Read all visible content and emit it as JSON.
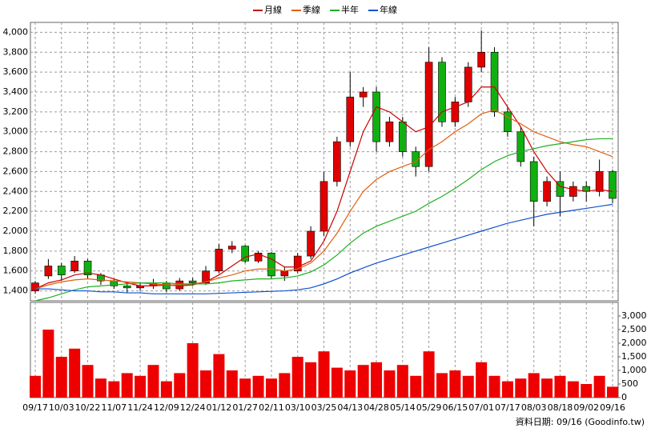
{
  "chart_data": {
    "type": "candlestick",
    "legend": [
      {
        "name": "月線",
        "color": "#cc0000"
      },
      {
        "name": "季線",
        "color": "#e06010"
      },
      {
        "name": "半年",
        "color": "#20b020"
      },
      {
        "name": "年線",
        "color": "#1050d0"
      }
    ],
    "categories": [
      "09/17",
      null,
      "10/03",
      null,
      "10/22",
      null,
      "11/07",
      null,
      "11/24",
      null,
      "12/09",
      null,
      "12/24",
      null,
      "01/12",
      null,
      "01/27",
      null,
      "02/11",
      null,
      "03/10",
      null,
      "03/25",
      null,
      "04/13",
      null,
      "04/28",
      null,
      "05/14",
      null,
      "05/29",
      null,
      "06/15",
      null,
      "07/01",
      null,
      "07/17",
      null,
      "08/03",
      null,
      "08/18",
      null,
      "09/02",
      null,
      "09/16"
    ],
    "open": [
      1400,
      1550,
      1650,
      1600,
      1700,
      1560,
      1500,
      1450,
      1430,
      1450,
      1480,
      1420,
      1500,
      1480,
      1600,
      1820,
      1850,
      1700,
      1780,
      1550,
      1600,
      1750,
      2000,
      2500,
      2900,
      3350,
      3400,
      2900,
      3100,
      2800,
      2650,
      3700,
      3100,
      3300,
      3650,
      3800,
      3200,
      3000,
      2700,
      2300,
      2500,
      2350,
      2450,
      2400,
      2600
    ],
    "high": [
      1500,
      1720,
      1680,
      1750,
      1720,
      1580,
      1520,
      1480,
      1480,
      1520,
      1500,
      1530,
      1530,
      1650,
      1870,
      1900,
      1860,
      1800,
      1790,
      1640,
      1780,
      2050,
      2600,
      2950,
      3600,
      3450,
      3450,
      3150,
      3150,
      2850,
      3850,
      3750,
      3350,
      3700,
      4020,
      3850,
      3250,
      3050,
      2750,
      2550,
      2600,
      2500,
      2500,
      2720,
      2620
    ],
    "low": [
      1370,
      1520,
      1500,
      1580,
      1520,
      1460,
      1420,
      1380,
      1400,
      1420,
      1390,
      1400,
      1450,
      1460,
      1580,
      1780,
      1680,
      1680,
      1520,
      1500,
      1580,
      1720,
      1950,
      2450,
      2850,
      3250,
      2800,
      2850,
      2750,
      2550,
      2600,
      3050,
      3050,
      3250,
      3600,
      3150,
      2950,
      2650,
      2050,
      2250,
      2150,
      2300,
      2300,
      2350,
      2280
    ],
    "close": [
      1480,
      1650,
      1560,
      1700,
      1560,
      1500,
      1450,
      1430,
      1450,
      1480,
      1420,
      1500,
      1480,
      1600,
      1820,
      1850,
      1700,
      1780,
      1550,
      1600,
      1750,
      2000,
      2500,
      2900,
      3350,
      3400,
      2900,
      3100,
      2800,
      2650,
      3700,
      3100,
      3300,
      3650,
      3800,
      3200,
      3000,
      2700,
      2300,
      2500,
      2350,
      2450,
      2400,
      2600,
      2330
    ],
    "up_color": "#e00000",
    "down_color": "#10b010",
    "series": [
      {
        "name": "月線",
        "color": "#cc0000",
        "values": [
          1420,
          1480,
          1510,
          1560,
          1580,
          1560,
          1520,
          1480,
          1450,
          1450,
          1460,
          1450,
          1460,
          1490,
          1560,
          1650,
          1740,
          1770,
          1720,
          1640,
          1640,
          1700,
          1900,
          2200,
          2600,
          3000,
          3250,
          3200,
          3100,
          3000,
          3050,
          3200,
          3250,
          3300,
          3450,
          3450,
          3250,
          3050,
          2800,
          2600,
          2450,
          2420,
          2400,
          2420,
          2400
        ]
      },
      {
        "name": "季線",
        "color": "#e06010",
        "values": [
          1420,
          1460,
          1490,
          1510,
          1520,
          1510,
          1500,
          1490,
          1480,
          1470,
          1460,
          1460,
          1470,
          1490,
          1530,
          1560,
          1600,
          1620,
          1620,
          1600,
          1620,
          1680,
          1800,
          1980,
          2200,
          2400,
          2520,
          2600,
          2650,
          2700,
          2820,
          2900,
          3000,
          3080,
          3180,
          3220,
          3150,
          3080,
          3000,
          2950,
          2900,
          2870,
          2850,
          2800,
          2750
        ]
      },
      {
        "name": "半年",
        "color": "#20b020",
        "values": [
          1300,
          1330,
          1370,
          1410,
          1440,
          1450,
          1460,
          1470,
          1480,
          1480,
          1480,
          1470,
          1470,
          1470,
          1480,
          1500,
          1510,
          1520,
          1520,
          1530,
          1550,
          1590,
          1660,
          1760,
          1880,
          1980,
          2050,
          2100,
          2150,
          2200,
          2280,
          2350,
          2430,
          2520,
          2620,
          2700,
          2760,
          2800,
          2830,
          2860,
          2880,
          2900,
          2920,
          2930,
          2930
        ]
      },
      {
        "name": "年線",
        "color": "#1050d0",
        "values": [
          1420,
          1420,
          1410,
          1400,
          1400,
          1390,
          1390,
          1380,
          1380,
          1370,
          1370,
          1370,
          1370,
          1370,
          1375,
          1380,
          1385,
          1390,
          1395,
          1400,
          1410,
          1430,
          1470,
          1520,
          1580,
          1630,
          1680,
          1720,
          1760,
          1800,
          1840,
          1880,
          1920,
          1960,
          2000,
          2040,
          2080,
          2110,
          2140,
          2170,
          2190,
          2210,
          2230,
          2250,
          2270
        ]
      }
    ],
    "ylim": [
      1300,
      4100
    ],
    "yticks": [
      {
        "value": 1400,
        "label": "1,400"
      },
      {
        "value": 1600,
        "label": "1,600"
      },
      {
        "value": 1800,
        "label": "1,800"
      },
      {
        "value": 2000,
        "label": "2,000"
      },
      {
        "value": 2200,
        "label": "2,200"
      },
      {
        "value": 2400,
        "label": "2,400"
      },
      {
        "value": 2600,
        "label": "2,600"
      },
      {
        "value": 2800,
        "label": "2,800"
      },
      {
        "value": 3000,
        "label": "3,000"
      },
      {
        "value": 3200,
        "label": "3,200"
      },
      {
        "value": 3400,
        "label": "3,400"
      },
      {
        "value": 3600,
        "label": "3,600"
      },
      {
        "value": 3800,
        "label": "3,800"
      },
      {
        "value": 4000,
        "label": "4,000"
      }
    ],
    "volume": {
      "color": "#ee0000",
      "values": [
        800,
        2500,
        1500,
        1800,
        1200,
        700,
        600,
        900,
        800,
        1200,
        600,
        900,
        2000,
        1000,
        1600,
        1000,
        700,
        800,
        700,
        900,
        1500,
        1300,
        1700,
        1100,
        1000,
        1200,
        1300,
        1000,
        1200,
        800,
        1700,
        900,
        1000,
        800,
        1300,
        800,
        600,
        700,
        900,
        700,
        800,
        600,
        500,
        800,
        400
      ],
      "ylim": [
        0,
        3500
      ],
      "yticks": [
        0,
        500,
        {
          "value": 1000,
          "label": "1,000"
        },
        {
          "value": 1500,
          "label": "1,500"
        },
        {
          "value": 2000,
          "label": "2,000"
        },
        {
          "value": 2500,
          "label": "2,500"
        },
        {
          "value": 3000,
          "label": "3,000"
        }
      ]
    },
    "grid": true,
    "footer": "資料日期: 09/16  (Goodinfo.tw)"
  }
}
